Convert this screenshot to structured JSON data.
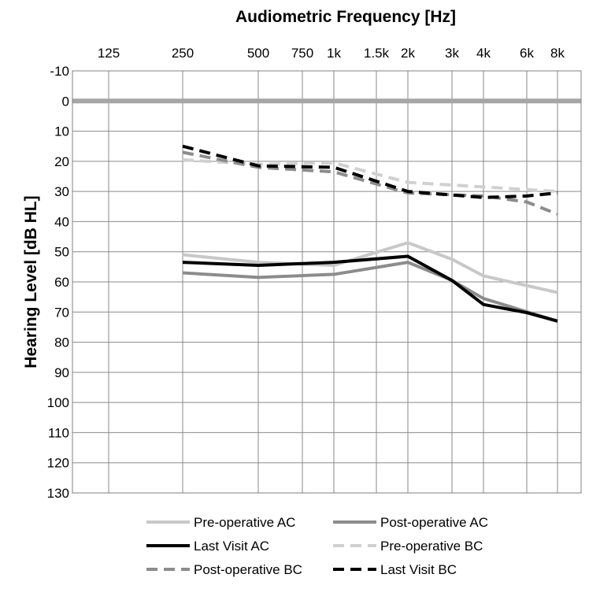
{
  "chart_data": {
    "type": "line",
    "title": "Audiometric Frequency [Hz]",
    "xlabel": "Audiometric Frequency [Hz]",
    "ylabel": "Hearing Level [dB HL]",
    "x_tick_labels": [
      "125",
      "250",
      "500",
      "750",
      "1k",
      "1.5k",
      "2k",
      "3k",
      "4k",
      "6k",
      "8k"
    ],
    "x_tick_values": [
      125,
      250,
      500,
      750,
      1000,
      1500,
      2000,
      3000,
      4000,
      6000,
      8000
    ],
    "ylim": [
      -10,
      130
    ],
    "y_inverted": true,
    "y_ticks": [
      -10,
      0,
      10,
      20,
      30,
      40,
      50,
      60,
      70,
      80,
      90,
      100,
      110,
      120,
      130
    ],
    "reference_line": {
      "y": 0,
      "color": "#a6a6a6"
    },
    "grid": true,
    "legend_position": "bottom",
    "series": [
      {
        "name": "Pre-operative AC",
        "style": "solid",
        "color": "#c8c8c8",
        "x": [
          250,
          500,
          1000,
          2000,
          3000,
          4000,
          8000
        ],
        "y": [
          51,
          53.5,
          54.5,
          47,
          52.5,
          58,
          63.5
        ]
      },
      {
        "name": "Post-operative AC",
        "style": "solid",
        "color": "#8c8c8c",
        "x": [
          250,
          500,
          1000,
          2000,
          3000,
          4000,
          8000
        ],
        "y": [
          57,
          58.5,
          57.5,
          53.5,
          59.5,
          65.5,
          73
        ]
      },
      {
        "name": "Last Visit AC",
        "style": "solid",
        "color": "#000000",
        "x": [
          250,
          500,
          1000,
          2000,
          3000,
          4000,
          6000,
          8000
        ],
        "y": [
          53.5,
          54.5,
          53.5,
          51.5,
          59.5,
          67.5,
          70.2,
          73
        ]
      },
      {
        "name": "Pre-operative BC",
        "style": "dashed",
        "color": "#d0d0d0",
        "x": [
          250,
          500,
          1000,
          2000,
          4000,
          8000
        ],
        "y": [
          19.5,
          21,
          20.5,
          27,
          28.5,
          30
        ]
      },
      {
        "name": "Post-operative BC",
        "style": "dashed",
        "color": "#8c8c8c",
        "x": [
          250,
          500,
          1000,
          2000,
          4000,
          6000,
          8000
        ],
        "y": [
          17,
          22,
          23.5,
          30.5,
          31.5,
          33.5,
          37.5
        ]
      },
      {
        "name": "Last Visit BC",
        "style": "dashed",
        "color": "#000000",
        "x": [
          250,
          500,
          1000,
          2000,
          4000,
          6000,
          8000
        ],
        "y": [
          15,
          21.5,
          22,
          30,
          32,
          31.5,
          30.5
        ]
      }
    ]
  }
}
